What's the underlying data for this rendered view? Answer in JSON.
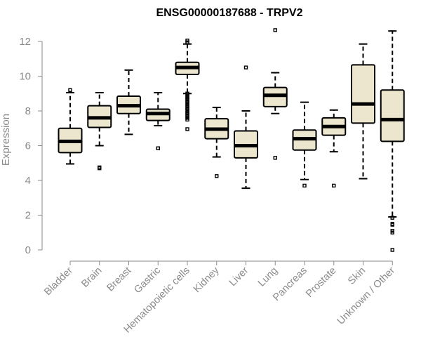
{
  "chart_data": {
    "type": "boxplot",
    "title": "ENSG00000187688 - TRPV2",
    "xlabel": "",
    "ylabel": "Expression",
    "ylim": [
      0,
      12.6
    ],
    "yticks": [
      0,
      2,
      4,
      6,
      8,
      10,
      12
    ],
    "box_color": "#ede6cf",
    "outline_color": "#000000",
    "categories": [
      "Bladder",
      "Brain",
      "Breast",
      "Gastric",
      "Hematopoietic cells",
      "Kidney",
      "Liver",
      "Lung",
      "Pancreas",
      "Prostate",
      "Skin",
      "Unknown / Other"
    ],
    "boxes": [
      {
        "name": "Bladder",
        "whisker_low": 4.95,
        "q1": 5.6,
        "median": 6.25,
        "q3": 7.0,
        "whisker_high": 9.05,
        "outliers": [
          9.2
        ]
      },
      {
        "name": "Brain",
        "whisker_low": 6.0,
        "q1": 7.05,
        "median": 7.6,
        "q3": 8.3,
        "whisker_high": 9.05,
        "outliers": [
          4.75,
          4.7
        ]
      },
      {
        "name": "Breast",
        "whisker_low": 6.65,
        "q1": 7.85,
        "median": 8.3,
        "q3": 8.85,
        "whisker_high": 10.35,
        "outliers": []
      },
      {
        "name": "Gastric",
        "whisker_low": 7.15,
        "q1": 7.45,
        "median": 7.85,
        "q3": 8.1,
        "whisker_high": 9.05,
        "outliers": [
          5.85
        ]
      },
      {
        "name": "Hematopoietic cells",
        "whisker_low": 9.0,
        "q1": 10.1,
        "median": 10.5,
        "q3": 10.8,
        "whisker_high": 11.85,
        "outliers": [
          12.05,
          11.95,
          9.0,
          8.9,
          8.8,
          8.7,
          8.6,
          8.5,
          8.4,
          8.3,
          8.2,
          8.1,
          8.0,
          7.9,
          7.8,
          7.7,
          7.6,
          7.5,
          6.95
        ]
      },
      {
        "name": "Kidney",
        "whisker_low": 5.35,
        "q1": 6.4,
        "median": 6.95,
        "q3": 7.55,
        "whisker_high": 8.2,
        "outliers": [
          4.25
        ]
      },
      {
        "name": "Liver",
        "whisker_low": 3.55,
        "q1": 5.3,
        "median": 6.0,
        "q3": 6.85,
        "whisker_high": 8.0,
        "outliers": [
          10.5
        ]
      },
      {
        "name": "Lung",
        "whisker_low": 7.85,
        "q1": 8.25,
        "median": 8.9,
        "q3": 9.35,
        "whisker_high": 10.2,
        "outliers": [
          12.65,
          5.3
        ]
      },
      {
        "name": "Pancreas",
        "whisker_low": 4.05,
        "q1": 5.75,
        "median": 6.4,
        "q3": 6.9,
        "whisker_high": 8.5,
        "outliers": [
          3.7
        ]
      },
      {
        "name": "Prostate",
        "whisker_low": 5.65,
        "q1": 6.6,
        "median": 7.1,
        "q3": 7.6,
        "whisker_high": 8.05,
        "outliers": [
          3.7
        ]
      },
      {
        "name": "Skin",
        "whisker_low": 4.1,
        "q1": 7.3,
        "median": 8.4,
        "q3": 10.65,
        "whisker_high": 11.85,
        "outliers": []
      },
      {
        "name": "Unknown / Other",
        "whisker_low": 1.9,
        "q1": 6.25,
        "median": 7.5,
        "q3": 9.2,
        "whisker_high": 12.6,
        "outliers": [
          1.85,
          1.5,
          1.45,
          1.1,
          1.0,
          0.0
        ]
      }
    ]
  }
}
